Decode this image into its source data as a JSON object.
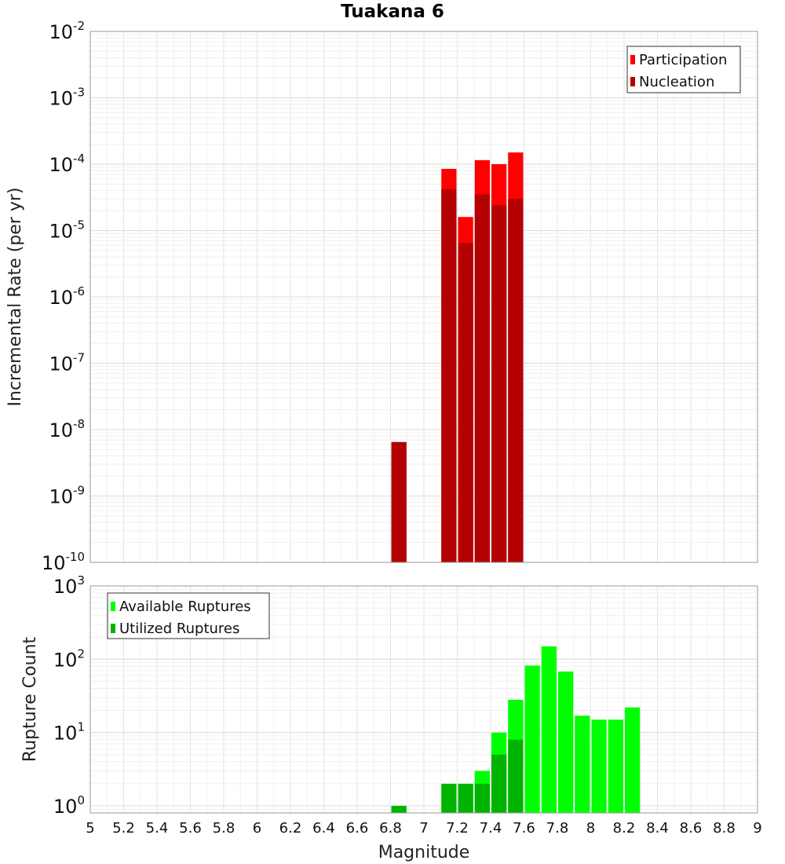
{
  "title": "Tuakana 6",
  "chart_data": [
    {
      "type": "bar",
      "title": "Tuakana 6",
      "xlabel": "Magnitude",
      "ylabel": "Incremental Rate (per yr)",
      "yscale": "log",
      "xlim": [
        5,
        9
      ],
      "ylim": [
        1e-10,
        0.01
      ],
      "grid": true,
      "legend_position": "top-right",
      "bin_width": 0.1,
      "series": [
        {
          "name": "Participation",
          "color": "#ff0000",
          "x": [
            6.85,
            7.15,
            7.25,
            7.35,
            7.45,
            7.55
          ],
          "values": [
            6.5e-09,
            8.5e-05,
            1.6e-05,
            0.000115,
            0.0001,
            0.00015
          ]
        },
        {
          "name": "Nucleation",
          "color": "#b30000",
          "x": [
            6.85,
            7.15,
            7.25,
            7.35,
            7.45,
            7.55
          ],
          "values": [
            6.5e-09,
            4.2e-05,
            6.5e-06,
            3.5e-05,
            2.4e-05,
            3e-05
          ]
        }
      ]
    },
    {
      "type": "bar",
      "xlabel": "Magnitude",
      "ylabel": "Rupture Count",
      "yscale": "log",
      "xlim": [
        5,
        9
      ],
      "ylim": [
        0.8,
        1000
      ],
      "grid": true,
      "legend_position": "top-left",
      "bin_width": 0.1,
      "series": [
        {
          "name": "Available Ruptures",
          "color": "#00ff00",
          "x": [
            6.85,
            7.15,
            7.25,
            7.35,
            7.45,
            7.55,
            7.65,
            7.75,
            7.85,
            7.95,
            8.05,
            8.15,
            8.25
          ],
          "values": [
            1,
            2,
            2,
            3,
            10,
            28,
            82,
            150,
            68,
            17,
            15,
            15,
            22
          ]
        },
        {
          "name": "Utilized Ruptures",
          "color": "#00b300",
          "x": [
            6.85,
            7.15,
            7.25,
            7.35,
            7.45,
            7.55
          ],
          "values": [
            1,
            2,
            2,
            2,
            5,
            8
          ]
        }
      ]
    }
  ],
  "x_ticks": [
    "5",
    "5.2",
    "5.4",
    "5.6",
    "5.8",
    "6",
    "6.2",
    "6.4",
    "6.6",
    "6.8",
    "7",
    "7.2",
    "7.4",
    "7.6",
    "7.8",
    "8",
    "8.2",
    "8.4",
    "8.6",
    "8.8",
    "9"
  ],
  "top_y_ticks": [
    {
      "base": "10",
      "exp": "-2"
    },
    {
      "base": "10",
      "exp": "-3"
    },
    {
      "base": "10",
      "exp": "-4"
    },
    {
      "base": "10",
      "exp": "-5"
    },
    {
      "base": "10",
      "exp": "-6"
    },
    {
      "base": "10",
      "exp": "-7"
    },
    {
      "base": "10",
      "exp": "-8"
    },
    {
      "base": "10",
      "exp": "-9"
    },
    {
      "base": "10",
      "exp": "-10"
    }
  ],
  "bottom_y_ticks": [
    {
      "base": "10",
      "exp": "3"
    },
    {
      "base": "10",
      "exp": "2"
    },
    {
      "base": "10",
      "exp": "1"
    },
    {
      "base": "10",
      "exp": "0"
    }
  ]
}
